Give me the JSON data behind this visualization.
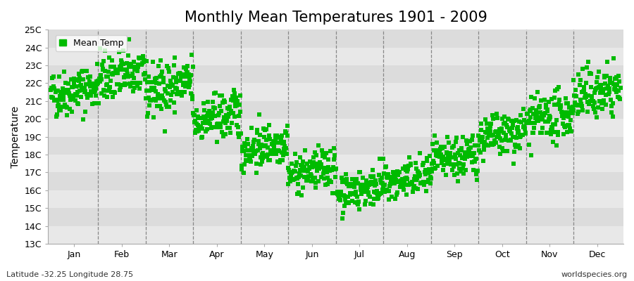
{
  "title": "Monthly Mean Temperatures 1901 - 2009",
  "ylabel": "Temperature",
  "subtitle_left": "Latitude -32.25 Longitude 28.75",
  "subtitle_right": "worldspecies.org",
  "ylim": [
    13,
    25
  ],
  "ytick_labels": [
    "13C",
    "14C",
    "15C",
    "16C",
    "17C",
    "18C",
    "19C",
    "20C",
    "21C",
    "22C",
    "23C",
    "24C",
    "25C"
  ],
  "ytick_values": [
    13,
    14,
    15,
    16,
    17,
    18,
    19,
    20,
    21,
    22,
    23,
    24,
    25
  ],
  "month_labels": [
    "Jan",
    "Feb",
    "Mar",
    "Apr",
    "May",
    "Jun",
    "Jul",
    "Aug",
    "Sep",
    "Oct",
    "Nov",
    "Dec"
  ],
  "monthly_means": [
    21.3,
    22.2,
    21.5,
    19.8,
    18.2,
    16.8,
    15.8,
    16.3,
    17.5,
    18.8,
    19.8,
    21.2
  ],
  "monthly_stds": [
    0.65,
    0.7,
    0.75,
    0.65,
    0.6,
    0.55,
    0.55,
    0.55,
    0.6,
    0.6,
    0.65,
    0.7
  ],
  "n_years": 109,
  "warming_trend": 0.005,
  "marker_color": "#00BB00",
  "marker": "s",
  "marker_size": 4,
  "bg_color": "#ebebeb",
  "band_colors": [
    "#e8e8e8",
    "#dcdcdc"
  ],
  "vline_color": "#888888",
  "legend_label": "Mean Temp",
  "title_fontsize": 15,
  "axis_fontsize": 10,
  "tick_fontsize": 9,
  "legend_fontsize": 9
}
